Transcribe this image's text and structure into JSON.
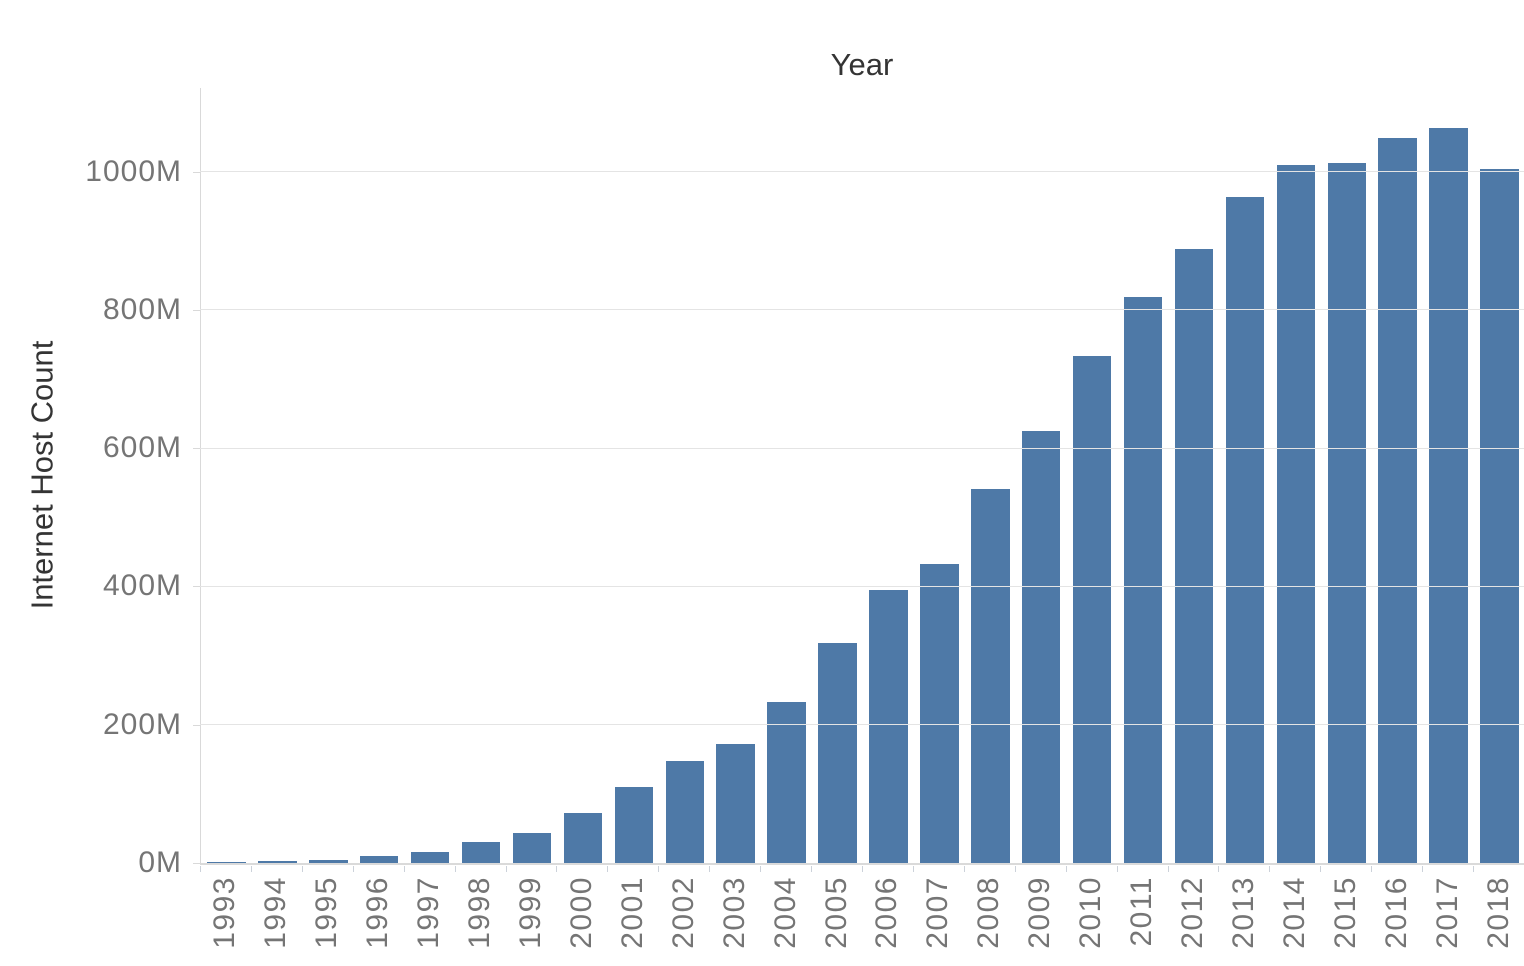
{
  "chart_data": {
    "type": "bar",
    "title": "Year",
    "xlabel": "",
    "ylabel": "Internet Host Count",
    "unit": "millions of hosts",
    "categories": [
      "1993",
      "1994",
      "1995",
      "1996",
      "1997",
      "1998",
      "1999",
      "2000",
      "2001",
      "2002",
      "2003",
      "2004",
      "2005",
      "2006",
      "2007",
      "2008",
      "2009",
      "2010",
      "2011",
      "2012",
      "2013",
      "2014",
      "2015",
      "2016",
      "2017",
      "2018"
    ],
    "values": [
      1.3,
      2.2,
      4.9,
      9.5,
      16.1,
      29.7,
      43.2,
      72.4,
      109.6,
      147.3,
      171.6,
      233.1,
      317.6,
      395.0,
      433.2,
      541.7,
      625.2,
      732.7,
      818.4,
      888.2,
      963.5,
      1010.3,
      1012.7,
      1048.8,
      1062.7,
      1003.6
    ],
    "yticks": [
      {
        "value": 0,
        "label": "0M"
      },
      {
        "value": 200,
        "label": "200M"
      },
      {
        "value": 400,
        "label": "400M"
      },
      {
        "value": 600,
        "label": "600M"
      },
      {
        "value": 800,
        "label": "800M"
      },
      {
        "value": 1000,
        "label": "1000M"
      }
    ],
    "ylim": [
      0,
      1121
    ],
    "grid": true,
    "legend": "none",
    "colors": {
      "bar": "#4e79a7",
      "grid": "#e4e4e4",
      "axis": "#d9d9d9",
      "x_tick_mark": "#ccd2da",
      "tick_label": "#757575",
      "title_text": "#343434"
    }
  }
}
